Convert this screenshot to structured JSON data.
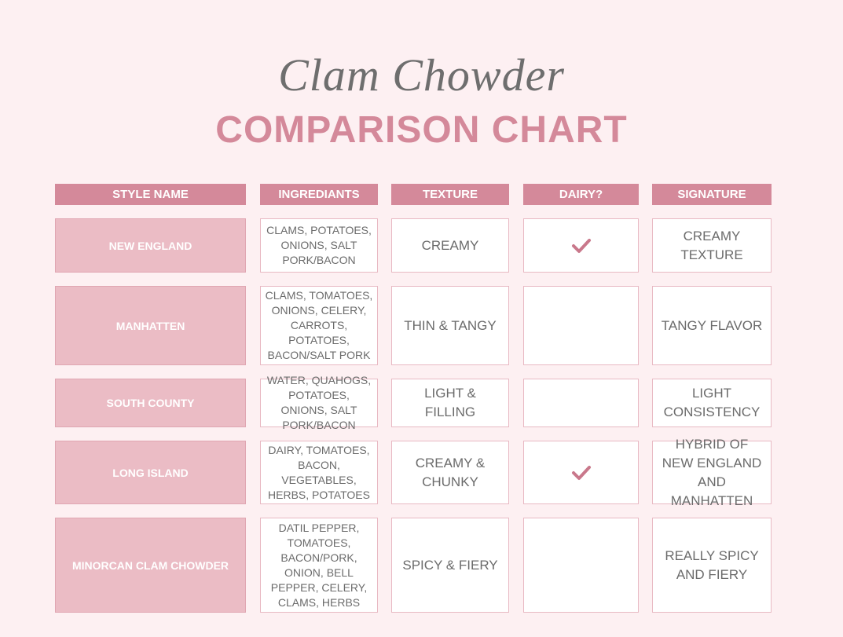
{
  "header": {
    "title": "Clam Chowder",
    "subtitle": "COMPARISON CHART"
  },
  "table": {
    "columns": [
      "STYLE NAME",
      "INGREDIANTS",
      "TEXTURE",
      "DAIRY?",
      "SIGNATURE"
    ],
    "rows": [
      {
        "style": "NEW ENGLAND",
        "ingredients": "CLAMS, POTATOES, ONIONS, SALT PORK/BACON",
        "texture": "CREAMY",
        "dairy": true,
        "signature": "CREAMY TEXTURE"
      },
      {
        "style": "MANHATTEN",
        "ingredients": "CLAMS, TOMATOES, ONIONS, CELERY, CARROTS, POTATOES, BACON/SALT PORK",
        "texture": "THIN & TANGY",
        "dairy": false,
        "signature": "TANGY FLAVOR"
      },
      {
        "style": "SOUTH COUNTY",
        "ingredients": "WATER, QUAHOGS, POTATOES, ONIONS, SALT PORK/BACON",
        "texture": "LIGHT & FILLING",
        "dairy": false,
        "signature": "LIGHT CONSISTENCY"
      },
      {
        "style": "LONG ISLAND",
        "ingredients": "DAIRY, TOMATOES, BACON, VEGETABLES, HERBS, POTATOES",
        "texture": "CREAMY & CHUNKY",
        "dairy": true,
        "signature": "HYBRID OF NEW ENGLAND AND MANHATTEN"
      },
      {
        "style": "MINORCAN CLAM CHOWDER",
        "ingredients": "DATIL PEPPER, TOMATOES, BACON/PORK, ONION, BELL PEPPER, CELERY, CLAMS, HERBS",
        "texture": "SPICY & FIERY",
        "dairy": false,
        "signature": "REALLY SPICY AND FIERY"
      }
    ]
  }
}
